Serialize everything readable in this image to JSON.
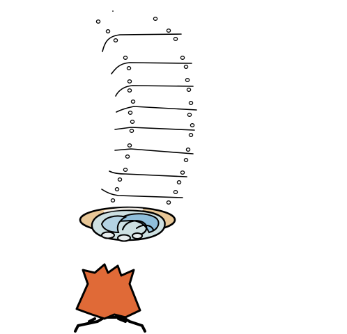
{
  "scene": {
    "background": "#ffffff",
    "outline_color": "#000000"
  },
  "ladder": {
    "rung_count": 8,
    "bead_icon": "small-ring-icon"
  },
  "portal": {
    "icon": "swirl-portal-icon",
    "rim_color": "#e8c797",
    "swirl_light": "#cde0e2",
    "swirl_blue": "#8fbedb"
  },
  "character": {
    "icon": "orange-fox-creature-icon",
    "body_color": "#e06a37"
  }
}
